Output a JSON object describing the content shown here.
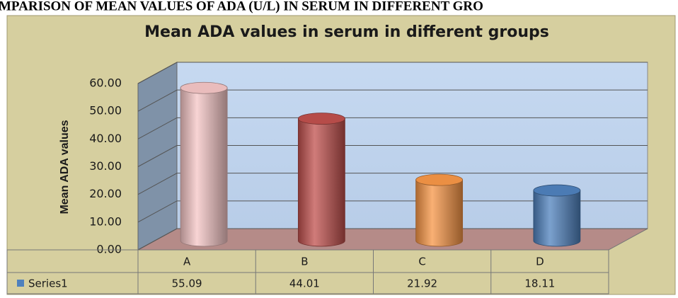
{
  "heading": "MPARISON OF MEAN VALUES OF ADA (U/L) IN SERUM IN DIFFERENT GRO",
  "chart_data": {
    "type": "bar",
    "title": "Mean ADA values in serum in different groups",
    "y_label": "Mean ADA values",
    "categories": [
      "A",
      "B",
      "C",
      "D"
    ],
    "series": [
      {
        "name": "Series1",
        "color": "#4f81bd",
        "point_colors": [
          "#f5c6c6",
          "#c0504d",
          "#f79646",
          "#4f81bd"
        ],
        "values": [
          55.09,
          44.01,
          21.92,
          18.11
        ]
      }
    ],
    "ylim": [
      0,
      60
    ],
    "yticks": [
      {
        "value": 0,
        "label": "0.00"
      },
      {
        "value": 10,
        "label": "10.00"
      },
      {
        "value": 20,
        "label": "20.00"
      },
      {
        "value": 30,
        "label": "30.00"
      },
      {
        "value": 40,
        "label": "40.00"
      },
      {
        "value": 50,
        "label": "50.00"
      },
      {
        "value": 60,
        "label": "60.00"
      }
    ],
    "grid": true,
    "legend": "table"
  }
}
